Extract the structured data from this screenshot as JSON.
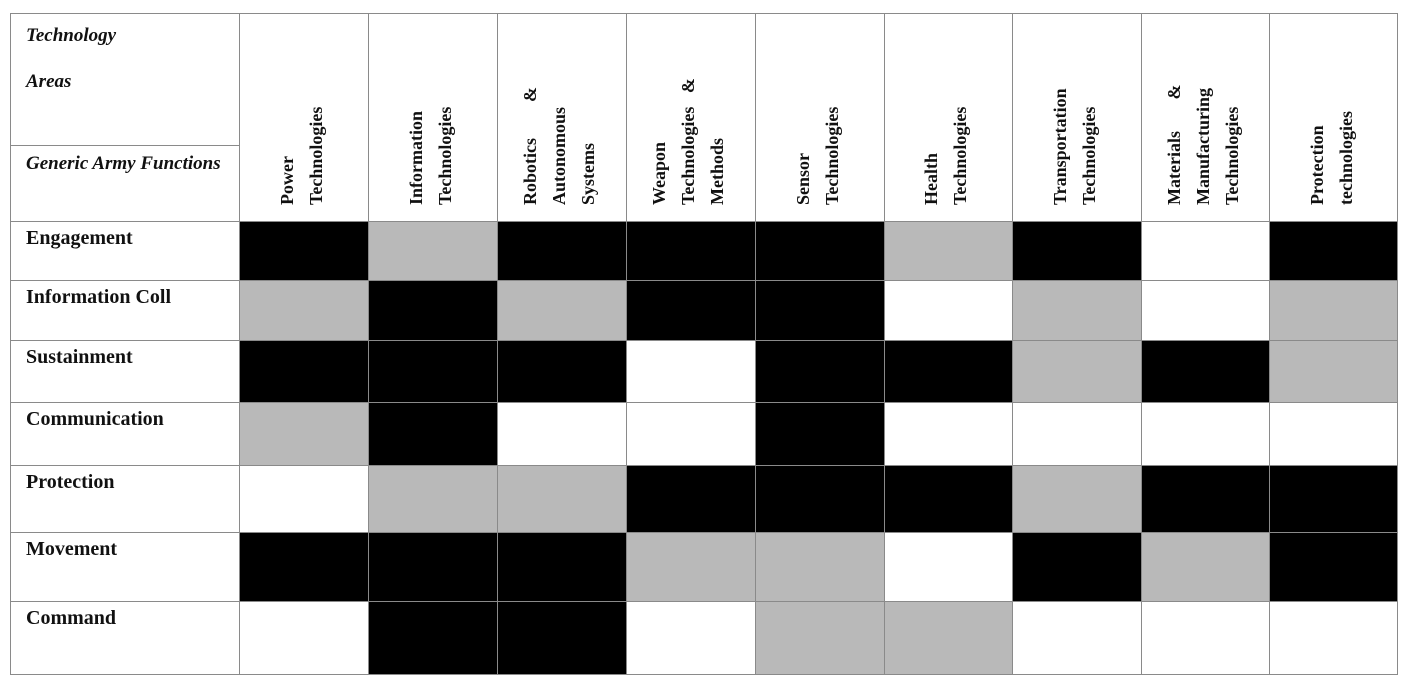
{
  "header": {
    "corner_top": "Technology\nAreas",
    "corner_bottom": "Generic Army Functions"
  },
  "columns": [
    {
      "lines": [
        "Power",
        "Technologies"
      ]
    },
    {
      "lines": [
        "Information",
        "Technologies"
      ]
    },
    {
      "lines": [
        "Robotics        &",
        "Autonomous",
        "Systems"
      ]
    },
    {
      "lines": [
        "Weapon",
        "Technologies   &",
        "Methods"
      ]
    },
    {
      "lines": [
        "Sensor",
        "Technologies"
      ]
    },
    {
      "lines": [
        "Health",
        "Technologies"
      ]
    },
    {
      "lines": [
        "Transportation",
        "Technologies"
      ]
    },
    {
      "lines": [
        "Materials       &",
        "Manufacturing",
        "Technologies"
      ]
    },
    {
      "lines": [
        "Protection",
        "technologies"
      ]
    }
  ],
  "rows": [
    {
      "label": "Engagement",
      "cells": [
        "black",
        "gray",
        "black",
        "black",
        "black",
        "gray",
        "black",
        "white",
        "black"
      ]
    },
    {
      "label": "Information Coll",
      "cells": [
        "gray",
        "black",
        "gray",
        "black",
        "black",
        "white",
        "gray",
        "white",
        "gray"
      ]
    },
    {
      "label": "Sustainment",
      "cells": [
        "black",
        "black",
        "black",
        "white",
        "black",
        "black",
        "gray",
        "black",
        "gray"
      ]
    },
    {
      "label": "Communication",
      "cells": [
        "gray",
        "black",
        "white",
        "white",
        "black",
        "white",
        "white",
        "white",
        "white"
      ]
    },
    {
      "label": "Protection",
      "cells": [
        "white",
        "gray",
        "gray",
        "black",
        "black",
        "black",
        "gray",
        "black",
        "black"
      ]
    },
    {
      "label": "Movement",
      "cells": [
        "black",
        "black",
        "black",
        "gray",
        "gray",
        "white",
        "black",
        "gray",
        "black"
      ]
    },
    {
      "label": "Command",
      "cells": [
        "white",
        "black",
        "black",
        "white",
        "gray",
        "gray",
        "white",
        "white",
        "white"
      ]
    }
  ],
  "colors": {
    "black": "#000000",
    "gray": "#b9b9b9",
    "white": "#ffffff",
    "line": "#8a8a8a"
  }
}
